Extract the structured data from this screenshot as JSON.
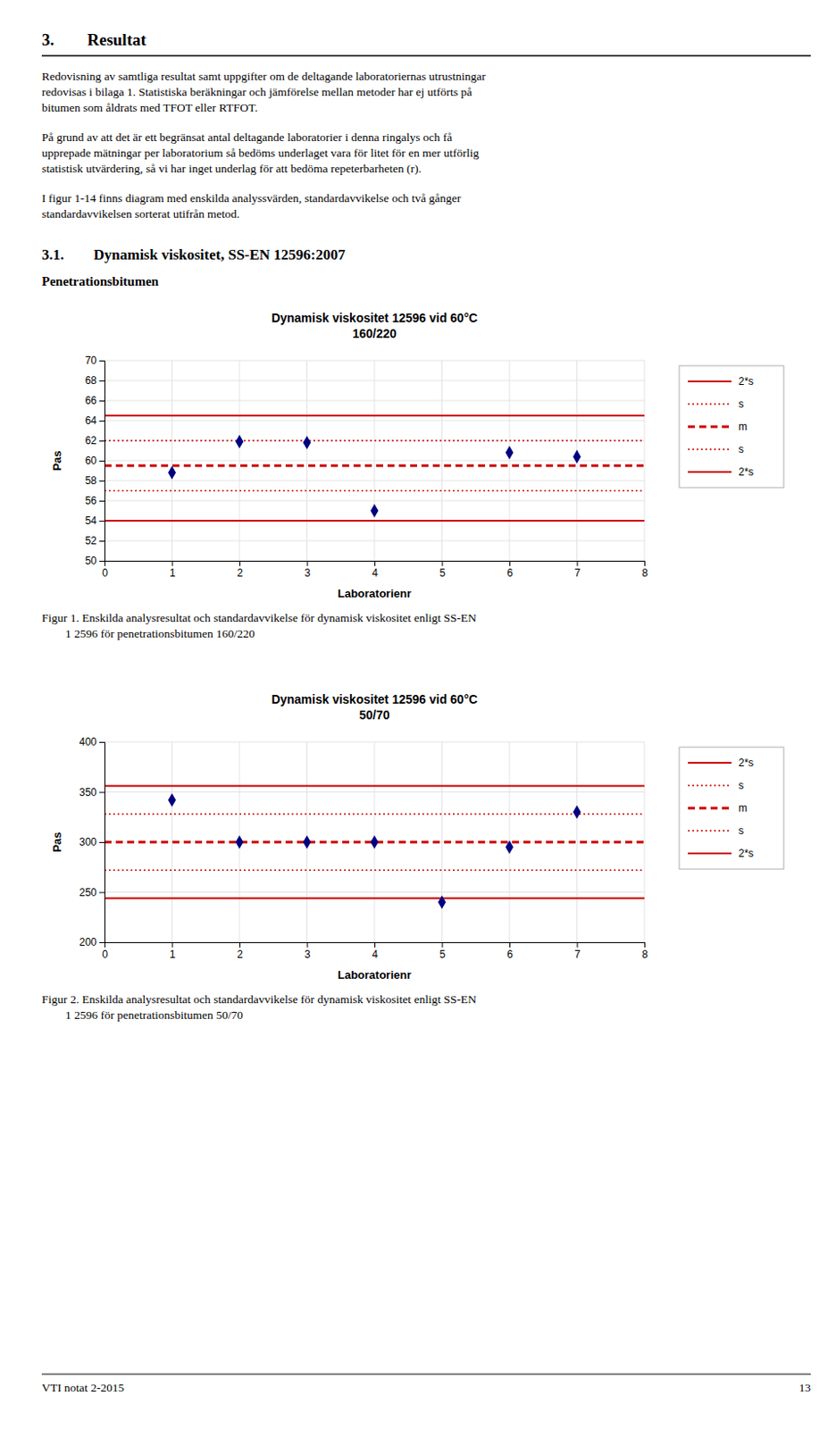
{
  "page": {
    "title": "3.  Resultat",
    "paragraphs": [
      "Redovisning av samtliga resultat samt uppgifter om de deltagande laboratoriernas utrustningar\nredovisas i bilaga 1. Statistiska beräkningar och jämförelse mellan metoder har ej utförts på\nbitumen som åldrats med TFOT eller RTFOT.",
      "På grund av att det är ett begränsat antal deltagande laboratorier i denna ringalys och få\nupprepade mätningar per laboratorium så bedöms underlaget vara för litet för en mer utförlig\nstatistisk utvärdering, så vi har inget underlag för att bedöma repeterbarheten (r).",
      "I figur 1-14 finns diagram med enskilda analyssvärden, standardavvikelse och två gånger\nstandardavvikelsen sorterat utifrån metod."
    ],
    "section": "3.1.  Dynamisk viskositet, SS-EN 12596:2007",
    "subheading": "Penetrationsbitumen",
    "footer_left": "VTI notat 2-2015",
    "footer_right": "13"
  },
  "chart_data": [
    {
      "type": "scatter",
      "title": "Dynamisk viskositet 12596 vid 60°C\n160/220",
      "x_label": "Laboratorienr",
      "y_label": "Pas",
      "x": [
        1,
        2,
        3,
        4,
        6,
        7
      ],
      "values": [
        58.8,
        61.9,
        61.8,
        55.0,
        60.8,
        60.4
      ],
      "color": "#000080",
      "marker": "diamond",
      "xlim": [
        0,
        8
      ],
      "ylim": [
        50,
        70
      ],
      "xticks": [
        0,
        1,
        2,
        3,
        4,
        5,
        6,
        7,
        8
      ],
      "yticks": [
        50,
        52,
        54,
        56,
        58,
        60,
        62,
        64,
        66,
        68,
        70
      ],
      "grid": true,
      "legend": "right",
      "reference_lines": [
        {
          "name": "2*s",
          "value": 64.5,
          "color": "#CC0000",
          "line_style": "solid"
        },
        {
          "name": "s",
          "value": 62.0,
          "color": "#CC0000",
          "line_style": "dotted"
        },
        {
          "name": "m",
          "value": 59.5,
          "color": "#CC0000",
          "line_style": "dashed"
        },
        {
          "name": "s",
          "value": 57.0,
          "color": "#CC0000",
          "line_style": "dotted"
        },
        {
          "name": "2*s",
          "value": 54.0,
          "color": "#CC0000",
          "line_style": "solid"
        }
      ],
      "caption": "Figur 1. Enskilda analysresultat och standardavvikelse för dynamisk viskositet enligt SS-EN\n  1 2596 för penetrationsbitumen 160/220"
    },
    {
      "type": "scatter",
      "title": "Dynamisk viskositet 12596 vid 60°C\n50/70",
      "x_label": "Laboratorienr",
      "y_label": "Pas",
      "x": [
        1,
        2,
        3,
        4,
        5,
        6,
        7
      ],
      "values": [
        342,
        300,
        300,
        300,
        240,
        295,
        330
      ],
      "color": "#000080",
      "marker": "diamond",
      "xlim": [
        0,
        8
      ],
      "ylim": [
        200,
        400
      ],
      "xticks": [
        0,
        1,
        2,
        3,
        4,
        5,
        6,
        7,
        8
      ],
      "yticks": [
        200,
        250,
        300,
        350,
        400
      ],
      "grid": true,
      "legend": "right",
      "reference_lines": [
        {
          "name": "2*s",
          "value": 356,
          "color": "#CC0000",
          "line_style": "solid"
        },
        {
          "name": "s",
          "value": 328,
          "color": "#CC0000",
          "line_style": "dotted"
        },
        {
          "name": "m",
          "value": 300,
          "color": "#CC0000",
          "line_style": "dashed"
        },
        {
          "name": "s",
          "value": 272,
          "color": "#CC0000",
          "line_style": "dotted"
        },
        {
          "name": "2*s",
          "value": 244,
          "color": "#CC0000",
          "line_style": "solid"
        }
      ],
      "caption": "Figur 2. Enskilda analysresultat och standardavvikelse för dynamisk viskositet enligt SS-EN\n  1 2596 för penetrationsbitumen 50/70"
    }
  ]
}
